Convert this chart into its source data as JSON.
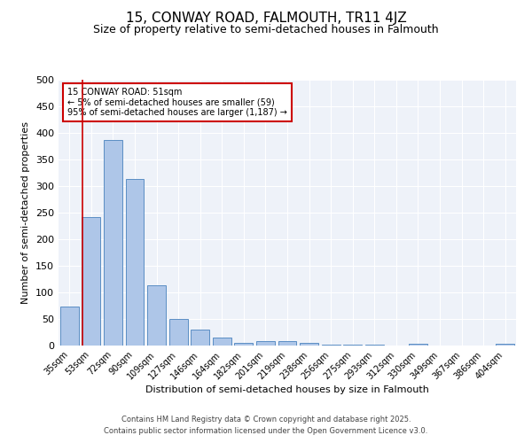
{
  "title": "15, CONWAY ROAD, FALMOUTH, TR11 4JZ",
  "subtitle": "Size of property relative to semi-detached houses in Falmouth",
  "xlabel": "Distribution of semi-detached houses by size in Falmouth",
  "ylabel": "Number of semi-detached properties",
  "categories": [
    "35sqm",
    "53sqm",
    "72sqm",
    "90sqm",
    "109sqm",
    "127sqm",
    "146sqm",
    "164sqm",
    "182sqm",
    "201sqm",
    "219sqm",
    "238sqm",
    "256sqm",
    "275sqm",
    "293sqm",
    "312sqm",
    "330sqm",
    "349sqm",
    "367sqm",
    "386sqm",
    "404sqm"
  ],
  "values": [
    73,
    242,
    387,
    314,
    113,
    50,
    30,
    15,
    5,
    8,
    9,
    5,
    2,
    2,
    1,
    0,
    4,
    0,
    0,
    0,
    4
  ],
  "bar_color": "#aec6e8",
  "bar_edge_color": "#5b8ec4",
  "red_line_color": "#cc0000",
  "annotation_text": "15 CONWAY ROAD: 51sqm\n← 5% of semi-detached houses are smaller (59)\n95% of semi-detached houses are larger (1,187) →",
  "annotation_box_color": "#ffffff",
  "annotation_box_edge": "#cc0000",
  "ylim": [
    0,
    500
  ],
  "yticks": [
    0,
    50,
    100,
    150,
    200,
    250,
    300,
    350,
    400,
    450,
    500
  ],
  "footer1": "Contains HM Land Registry data © Crown copyright and database right 2025.",
  "footer2": "Contains public sector information licensed under the Open Government Licence v3.0.",
  "background_color": "#eef2f9",
  "title_fontsize": 11,
  "subtitle_fontsize": 9
}
